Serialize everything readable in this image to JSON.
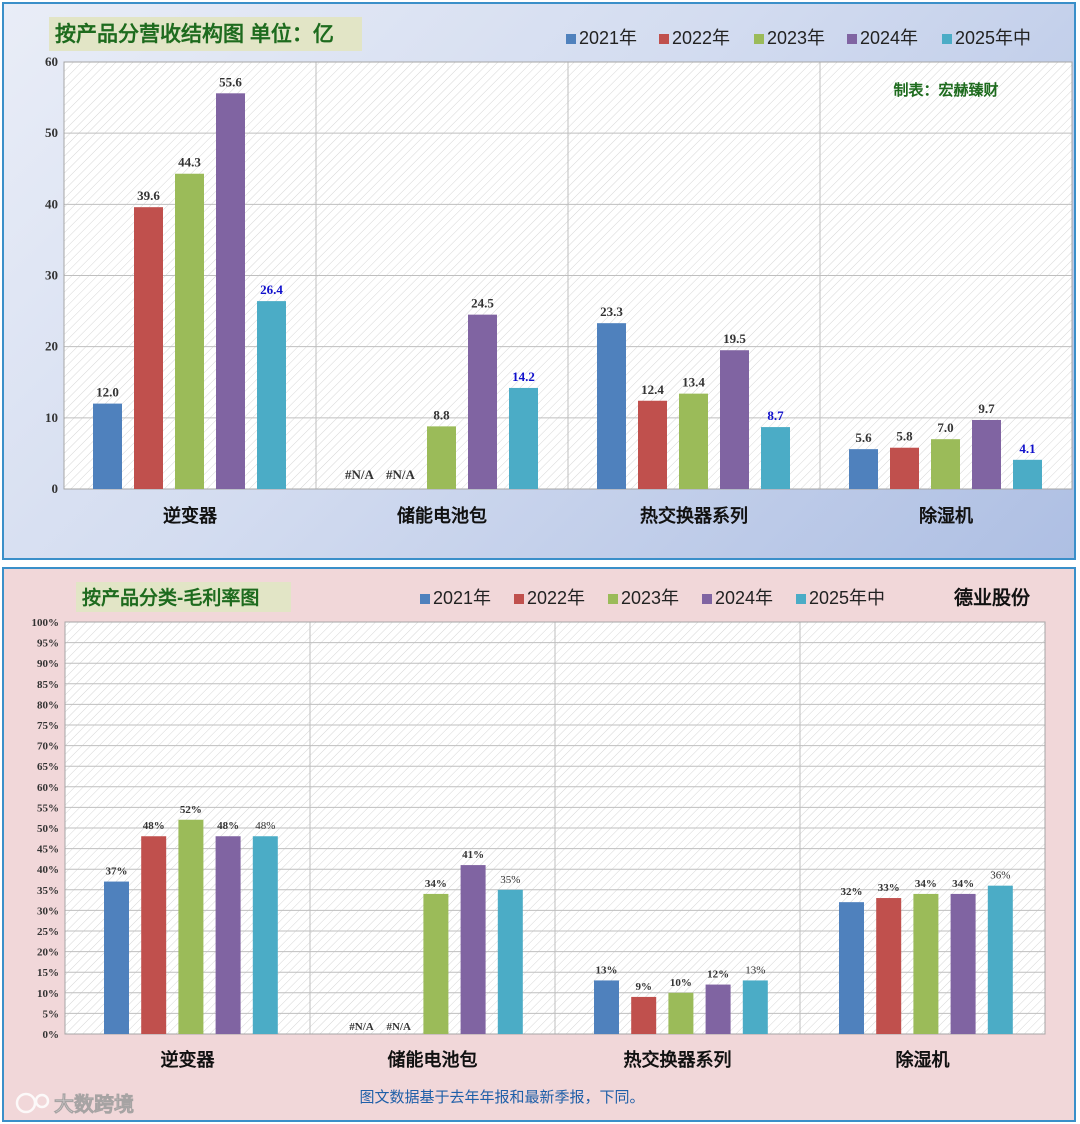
{
  "panel1": {
    "title": "按产品分营收结构图  单位：亿",
    "credit": "制表：宏赫臻财",
    "legend": [
      "2021年",
      "2022年",
      "2023年",
      "2024年",
      "2025年中"
    ]
  },
  "panel2": {
    "title": "按产品分类-毛利率图",
    "company": "德业股份",
    "legend": [
      "2021年",
      "2022年",
      "2023年",
      "2024年",
      "2025年中"
    ],
    "footnote": "图文数据基于去年年报和最新季报，下同。",
    "watermark": "大数跨境"
  },
  "colors": {
    "series": [
      "#4f81bd",
      "#c0504d",
      "#9bbb59",
      "#8064a2",
      "#4bacc6"
    ],
    "title_bg": "#e2e5c6",
    "title_text": "#1e6b1e",
    "latest_label": "#1010cc",
    "border": "#3a8fc9"
  },
  "chart_data": [
    {
      "type": "bar",
      "title": "按产品分营收结构图  单位：亿",
      "categories": [
        "逆变器",
        "储能电池包",
        "热交换器系列",
        "除湿机"
      ],
      "series": [
        {
          "name": "2021年",
          "values": [
            12.0,
            null,
            23.3,
            5.6
          ],
          "labels": [
            "12.0",
            "#N/A",
            "23.3",
            "5.6"
          ]
        },
        {
          "name": "2022年",
          "values": [
            39.6,
            null,
            12.4,
            5.8
          ],
          "labels": [
            "39.6",
            "#N/A",
            "12.4",
            "5.8"
          ]
        },
        {
          "name": "2023年",
          "values": [
            44.3,
            8.8,
            13.4,
            7.0
          ],
          "labels": [
            "44.3",
            "8.8",
            "13.4",
            "7.0"
          ]
        },
        {
          "name": "2024年",
          "values": [
            55.6,
            24.5,
            19.5,
            9.7
          ],
          "labels": [
            "55.6",
            "24.5",
            "19.5",
            "9.7"
          ]
        },
        {
          "name": "2025年中",
          "values": [
            26.4,
            14.2,
            8.7,
            4.1
          ],
          "labels": [
            "26.4",
            "14.2",
            "8.7",
            "4.1"
          ]
        }
      ],
      "ylim": [
        0,
        60
      ],
      "yticks": [
        "0",
        "10",
        "20",
        "30",
        "40",
        "50",
        "60"
      ],
      "grid": true,
      "legend_position": "top-right"
    },
    {
      "type": "bar",
      "title": "按产品分类-毛利率图",
      "categories": [
        "逆变器",
        "储能电池包",
        "热交换器系列",
        "除湿机"
      ],
      "series": [
        {
          "name": "2021年",
          "values": [
            37,
            null,
            13,
            32
          ],
          "labels": [
            "37%",
            "#N/A",
            "13%",
            "32%"
          ]
        },
        {
          "name": "2022年",
          "values": [
            48,
            null,
            9,
            33
          ],
          "labels": [
            "48%",
            "#N/A",
            "9%",
            "33%"
          ]
        },
        {
          "name": "2023年",
          "values": [
            52,
            34,
            10,
            34
          ],
          "labels": [
            "52%",
            "34%",
            "10%",
            "34%"
          ]
        },
        {
          "name": "2024年",
          "values": [
            48,
            41,
            12,
            34
          ],
          "labels": [
            "48%",
            "41%",
            "12%",
            "34%"
          ]
        },
        {
          "name": "2025年中",
          "values": [
            48,
            35,
            13,
            36
          ],
          "labels": [
            "48%",
            "35%",
            "13%",
            "36%"
          ]
        }
      ],
      "ylim": [
        0,
        100
      ],
      "yticks": [
        "0%",
        "5%",
        "10%",
        "15%",
        "20%",
        "25%",
        "30%",
        "35%",
        "40%",
        "45%",
        "50%",
        "55%",
        "60%",
        "65%",
        "70%",
        "75%",
        "80%",
        "85%",
        "90%",
        "95%",
        "100%"
      ],
      "grid": true,
      "legend_position": "top-right"
    }
  ]
}
